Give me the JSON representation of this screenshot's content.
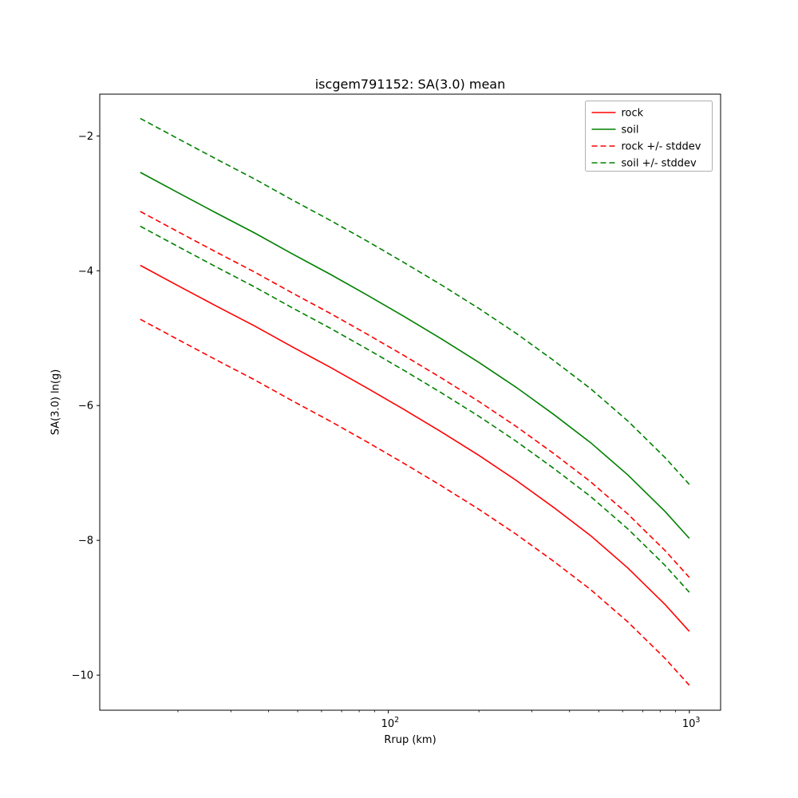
{
  "figure": {
    "title": "iscgem791152: SA(3.0) mean",
    "xlabel": "Rrup (km)",
    "ylabel": "SA(3.0) ln(g)"
  },
  "chart_data": {
    "type": "line",
    "title": "iscgem791152: SA(3.0) mean",
    "xlabel": "Rrup (km)",
    "ylabel": "SA(3.0) ln(g)",
    "x_scale": "log",
    "grid": false,
    "xlim": [
      11,
      1270
    ],
    "ylim": [
      -10.52,
      -1.38
    ],
    "x": [
      15,
      20,
      27,
      36,
      48,
      64,
      85,
      113,
      150,
      200,
      266,
      354,
      470,
      625,
      830,
      1000
    ],
    "series": [
      {
        "name": "rock",
        "color": "#ff0000",
        "dash": "solid",
        "values": [
          -3.92,
          -4.22,
          -4.53,
          -4.82,
          -5.13,
          -5.43,
          -5.74,
          -6.06,
          -6.39,
          -6.74,
          -7.11,
          -7.51,
          -7.93,
          -8.41,
          -8.95,
          -9.35
        ]
      },
      {
        "name": "soil",
        "color": "#008000",
        "dash": "solid",
        "values": [
          -2.54,
          -2.84,
          -3.15,
          -3.44,
          -3.75,
          -4.05,
          -4.36,
          -4.68,
          -5.01,
          -5.36,
          -5.73,
          -6.13,
          -6.55,
          -7.03,
          -7.57,
          -7.97
        ]
      },
      {
        "name": "rock plus stddev",
        "color": "#ff0000",
        "dash": "dashed",
        "values": [
          -3.12,
          -3.42,
          -3.73,
          -4.02,
          -4.33,
          -4.63,
          -4.94,
          -5.26,
          -5.59,
          -5.94,
          -6.31,
          -6.71,
          -7.13,
          -7.61,
          -8.15,
          -8.55
        ]
      },
      {
        "name": "rock minus stddev",
        "color": "#ff0000",
        "dash": "dashed",
        "values": [
          -4.72,
          -5.02,
          -5.33,
          -5.62,
          -5.93,
          -6.23,
          -6.54,
          -6.86,
          -7.19,
          -7.54,
          -7.91,
          -8.31,
          -8.73,
          -9.21,
          -9.75,
          -10.15
        ]
      },
      {
        "name": "soil plus stddev",
        "color": "#008000",
        "dash": "dashed",
        "values": [
          -1.74,
          -2.04,
          -2.35,
          -2.64,
          -2.95,
          -3.25,
          -3.56,
          -3.88,
          -4.21,
          -4.56,
          -4.93,
          -5.33,
          -5.75,
          -6.23,
          -6.77,
          -7.17
        ]
      },
      {
        "name": "soil minus stddev",
        "color": "#008000",
        "dash": "dashed",
        "values": [
          -3.34,
          -3.64,
          -3.95,
          -4.24,
          -4.55,
          -4.85,
          -5.16,
          -5.48,
          -5.81,
          -6.16,
          -6.53,
          -6.93,
          -7.35,
          -7.83,
          -8.37,
          -8.77
        ]
      }
    ],
    "legend": {
      "position": "upper right",
      "entries": [
        {
          "label": "rock",
          "color": "#ff0000",
          "dash": "solid"
        },
        {
          "label": "soil",
          "color": "#008000",
          "dash": "solid"
        },
        {
          "label": "rock +/- stddev",
          "color": "#ff0000",
          "dash": "dashed"
        },
        {
          "label": "soil +/- stddev",
          "color": "#008000",
          "dash": "dashed"
        }
      ]
    },
    "yticks": {
      "values": [
        -2,
        -4,
        -6,
        -8,
        -10
      ],
      "labels": [
        "−2",
        "−4",
        "−6",
        "−8",
        "−10"
      ]
    },
    "xticks": {
      "values": [
        100,
        1000
      ],
      "labels": [
        {
          "base": "10",
          "exp": "2"
        },
        {
          "base": "10",
          "exp": "3"
        }
      ]
    },
    "xticks_minor": [
      20,
      30,
      40,
      50,
      60,
      70,
      80,
      90,
      200,
      300,
      400,
      500,
      600,
      700,
      800,
      900
    ]
  }
}
